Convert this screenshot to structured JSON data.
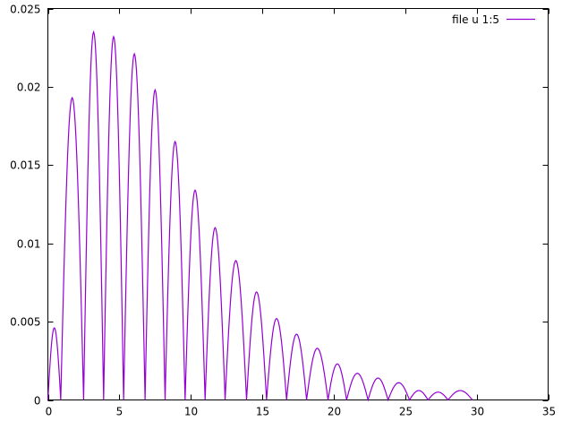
{
  "chart_data": {
    "type": "line",
    "title": "",
    "xlabel": "",
    "ylabel": "",
    "xlim": [
      0,
      35
    ],
    "ylim": [
      0,
      0.025
    ],
    "x_ticks": [
      "0",
      "5",
      "10",
      "15",
      "20",
      "25",
      "30",
      "35"
    ],
    "y_ticks": [
      "0",
      "0.005",
      "0.01",
      "0.015",
      "0.02",
      "0.025"
    ],
    "grid": false,
    "legend_position": "top-right",
    "series": [
      {
        "name": "file u 1:5",
        "color": "#9400d3",
        "peaks": [
          {
            "x": 0.45,
            "y": 0.0046
          },
          {
            "x": 1.8,
            "y": 0.0193
          },
          {
            "x": 3.2,
            "y": 0.0235
          },
          {
            "x": 4.6,
            "y": 0.0232
          },
          {
            "x": 6.05,
            "y": 0.0221
          },
          {
            "x": 7.5,
            "y": 0.0198
          },
          {
            "x": 8.9,
            "y": 0.0165
          },
          {
            "x": 10.3,
            "y": 0.0134
          },
          {
            "x": 11.7,
            "y": 0.011
          },
          {
            "x": 13.15,
            "y": 0.0089
          },
          {
            "x": 14.6,
            "y": 0.0069
          },
          {
            "x": 16.0,
            "y": 0.0052
          },
          {
            "x": 17.4,
            "y": 0.0042
          },
          {
            "x": 18.85,
            "y": 0.0033
          },
          {
            "x": 20.25,
            "y": 0.0023
          },
          {
            "x": 21.7,
            "y": 0.0017
          },
          {
            "x": 23.1,
            "y": 0.0014
          },
          {
            "x": 24.55,
            "y": 0.0011
          },
          {
            "x": 25.95,
            "y": 0.0006
          },
          {
            "x": 27.35,
            "y": 0.0005
          },
          {
            "x": 28.8,
            "y": 0.0006
          }
        ],
        "zeros": [
          0,
          0.9,
          2.5,
          3.9,
          5.3,
          6.8,
          8.2,
          9.6,
          11.0,
          12.4,
          13.9,
          15.3,
          16.7,
          18.1,
          19.6,
          20.9,
          22.4,
          23.8,
          25.3,
          26.6,
          28.0,
          29.7
        ]
      }
    ]
  }
}
